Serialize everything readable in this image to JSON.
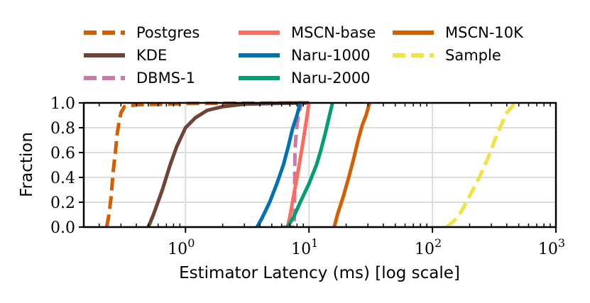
{
  "chart_data": {
    "type": "line",
    "title": "",
    "xlabel": "Estimator Latency (ms) [log scale]",
    "ylabel": "Fraction",
    "xscale": "log",
    "xlim": [
      0.15,
      1000
    ],
    "ylim": [
      0.0,
      1.0
    ],
    "grid": true,
    "legend_position": "top",
    "x_ticks": [
      {
        "value": 1,
        "base": "10",
        "exp": "0"
      },
      {
        "value": 10,
        "base": "10",
        "exp": "1"
      },
      {
        "value": 100,
        "base": "10",
        "exp": "2"
      },
      {
        "value": 1000,
        "base": "10",
        "exp": "3"
      }
    ],
    "y_ticks": [
      {
        "value": 0.0,
        "label": "0.0"
      },
      {
        "value": 0.2,
        "label": "0.2"
      },
      {
        "value": 0.4,
        "label": "0.4"
      },
      {
        "value": 0.6,
        "label": "0.6"
      },
      {
        "value": 0.8,
        "label": "0.8"
      },
      {
        "value": 1.0,
        "label": "1.0"
      }
    ],
    "series": [
      {
        "name": "Postgres",
        "color": "#d55e00",
        "dash": "dashed",
        "points": [
          [
            0.23,
            0.0
          ],
          [
            0.24,
            0.1
          ],
          [
            0.25,
            0.25
          ],
          [
            0.26,
            0.45
          ],
          [
            0.27,
            0.6
          ],
          [
            0.28,
            0.75
          ],
          [
            0.29,
            0.85
          ],
          [
            0.3,
            0.92
          ],
          [
            0.32,
            0.97
          ],
          [
            0.4,
            0.985
          ],
          [
            0.7,
            0.99
          ],
          [
            1.0,
            0.995
          ],
          [
            10,
            1.0
          ]
        ]
      },
      {
        "name": "KDE",
        "color": "#6f4437",
        "dash": "solid",
        "points": [
          [
            0.5,
            0.0
          ],
          [
            0.55,
            0.1
          ],
          [
            0.65,
            0.3
          ],
          [
            0.75,
            0.5
          ],
          [
            0.85,
            0.65
          ],
          [
            1.0,
            0.8
          ],
          [
            1.2,
            0.88
          ],
          [
            1.5,
            0.94
          ],
          [
            2.0,
            0.97
          ],
          [
            3.0,
            0.99
          ],
          [
            6.0,
            0.997
          ],
          [
            10,
            1.0
          ]
        ]
      },
      {
        "name": "DBMS-1",
        "color": "#cc79a7",
        "dash": "dashed",
        "points": [
          [
            6.0,
            0.0
          ],
          [
            7.0,
            0.0
          ],
          [
            7.6,
            0.0
          ],
          [
            7.7,
            0.6
          ],
          [
            7.8,
            0.7
          ],
          [
            8.0,
            0.82
          ],
          [
            8.3,
            0.92
          ],
          [
            8.7,
            1.0
          ]
        ]
      },
      {
        "name": "MSCN-base",
        "color": "#fd6c5f",
        "dash": "solid",
        "points": [
          [
            6.7,
            0.0
          ],
          [
            7.0,
            0.08
          ],
          [
            7.5,
            0.25
          ],
          [
            8.0,
            0.4
          ],
          [
            8.5,
            0.55
          ],
          [
            9.0,
            0.7
          ],
          [
            9.5,
            0.85
          ],
          [
            10.0,
            1.0
          ]
        ]
      },
      {
        "name": "Naru-1000",
        "color": "#0072b2",
        "dash": "solid",
        "points": [
          [
            3.8,
            0.0
          ],
          [
            4.2,
            0.08
          ],
          [
            4.8,
            0.2
          ],
          [
            5.5,
            0.35
          ],
          [
            6.2,
            0.5
          ],
          [
            6.8,
            0.65
          ],
          [
            7.4,
            0.8
          ],
          [
            8.0,
            0.9
          ],
          [
            8.5,
            1.0
          ]
        ]
      },
      {
        "name": "Naru-2000",
        "color": "#009e73",
        "dash": "solid",
        "points": [
          [
            6.7,
            0.0
          ],
          [
            7.5,
            0.08
          ],
          [
            8.5,
            0.2
          ],
          [
            10.0,
            0.35
          ],
          [
            11.5,
            0.5
          ],
          [
            12.5,
            0.62
          ],
          [
            13.5,
            0.75
          ],
          [
            14.5,
            0.88
          ],
          [
            15.5,
            1.0
          ]
        ]
      },
      {
        "name": "MSCN-10K",
        "color": "#d55e00",
        "dash": "solid",
        "points": [
          [
            16.0,
            0.0
          ],
          [
            17.0,
            0.1
          ],
          [
            19.0,
            0.25
          ],
          [
            21.0,
            0.4
          ],
          [
            23.0,
            0.55
          ],
          [
            25.0,
            0.7
          ],
          [
            27.0,
            0.82
          ],
          [
            29.0,
            0.9
          ],
          [
            31.0,
            1.0
          ]
        ]
      },
      {
        "name": "Sample",
        "color": "#f0e442",
        "dash": "dashed",
        "points": [
          [
            130,
            0.0
          ],
          [
            150,
            0.05
          ],
          [
            170,
            0.12
          ],
          [
            200,
            0.25
          ],
          [
            240,
            0.4
          ],
          [
            280,
            0.55
          ],
          [
            320,
            0.7
          ],
          [
            360,
            0.82
          ],
          [
            400,
            0.92
          ],
          [
            450,
            0.98
          ],
          [
            500,
            1.0
          ]
        ]
      }
    ]
  }
}
